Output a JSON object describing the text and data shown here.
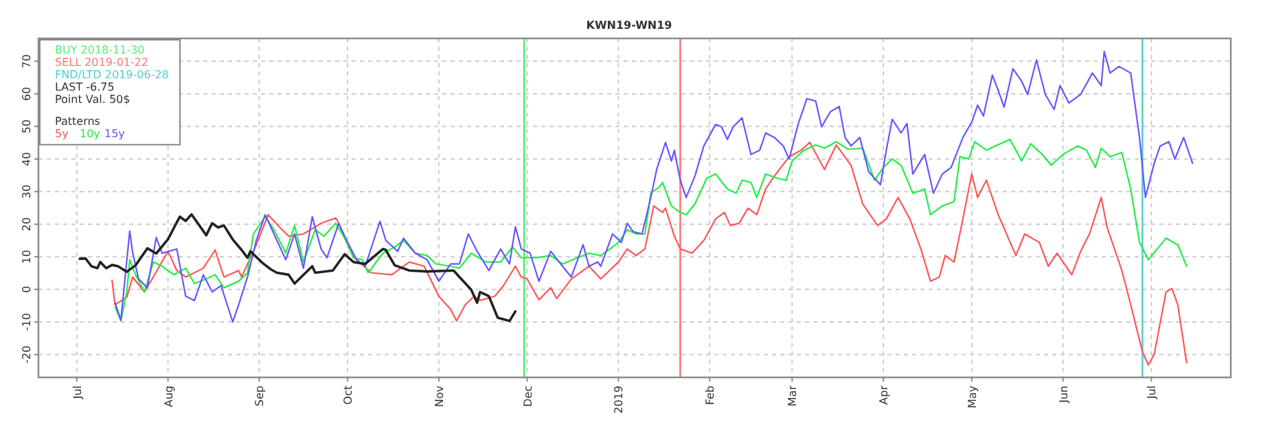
{
  "chart_data": {
    "type": "line",
    "title": "KWN19-WN19",
    "legend_title": "Patterns",
    "legend": "top left",
    "grid": true,
    "line_style": "solid",
    "xlim": [
      "2018-06-18",
      "2019-07-28"
    ],
    "xticks": [
      {
        "value": "2018-07-01",
        "label": "Jul"
      },
      {
        "value": "2018-08-01",
        "label": "Aug"
      },
      {
        "value": "2018-09-01",
        "label": "Sep"
      },
      {
        "value": "2018-10-01",
        "label": "Oct"
      },
      {
        "value": "2018-11-01",
        "label": "Nov"
      },
      {
        "value": "2018-12-01",
        "label": "Dec"
      },
      {
        "value": "2019-01-01",
        "label": "2019"
      },
      {
        "value": "2019-02-01",
        "label": "Feb"
      },
      {
        "value": "2019-03-01",
        "label": "Mar"
      },
      {
        "value": "2019-04-01",
        "label": "Apr"
      },
      {
        "value": "2019-05-01",
        "label": "May"
      },
      {
        "value": "2019-06-01",
        "label": "Jun"
      },
      {
        "value": "2019-07-01",
        "label": "Jul"
      }
    ],
    "ylim": [
      -27,
      77
    ],
    "yticks": [
      -20,
      -10,
      0,
      10,
      20,
      30,
      40,
      50,
      60,
      70
    ],
    "ref_lines": [
      {
        "axis": "x",
        "value": "2018-11-30",
        "label": "BUY 2018-11-30",
        "color": "#55ee77"
      },
      {
        "axis": "x",
        "value": "2019-01-22",
        "label": "SELL 2019-01-22",
        "color": "#ff7777"
      },
      {
        "axis": "x",
        "value": "2019-06-28",
        "label": "FND/LTD 2019-06-28",
        "color": "#55cccc"
      }
    ],
    "annotations": [
      "LAST -6.75",
      "Point Val. 50$"
    ],
    "series": [
      {
        "name": "5y",
        "color": "#ff5555",
        "x": [
          "2018-07-13",
          "2018-07-14",
          "2018-07-18",
          "2018-07-20",
          "2018-07-24",
          "2018-07-27",
          "2018-08-01",
          "2018-08-04",
          "2018-08-07",
          "2018-08-13",
          "2018-08-17",
          "2018-08-20",
          "2018-08-25",
          "2018-08-26",
          "2018-08-31",
          "2018-09-04",
          "2018-09-08",
          "2018-09-11",
          "2018-09-16",
          "2018-09-22",
          "2018-09-27",
          "2018-09-28",
          "2018-10-02",
          "2018-10-05",
          "2018-10-09",
          "2018-10-16",
          "2018-10-22",
          "2018-10-27",
          "2018-11-01",
          "2018-11-05",
          "2018-11-07",
          "2018-11-10",
          "2018-11-13",
          "2018-11-15",
          "2018-11-20",
          "2018-11-23",
          "2018-11-27",
          "2018-11-29",
          "2018-12-01",
          "2018-12-05",
          "2018-12-09",
          "2018-12-11",
          "2018-12-16",
          "2018-12-22",
          "2018-12-26",
          "2019-01-01",
          "2019-01-04",
          "2019-01-07",
          "2019-01-10",
          "2019-01-13",
          "2019-01-16",
          "2019-01-17",
          "2019-01-20",
          "2019-01-22",
          "2019-01-26",
          "2019-01-30",
          "2019-02-03",
          "2019-02-06",
          "2019-02-08",
          "2019-02-11",
          "2019-02-14",
          "2019-02-17",
          "2019-02-20",
          "2019-02-23",
          "2019-02-28",
          "2019-03-04",
          "2019-03-07",
          "2019-03-12",
          "2019-03-16",
          "2019-03-21",
          "2019-03-25",
          "2019-03-30",
          "2019-04-02",
          "2019-04-06",
          "2019-04-10",
          "2019-04-14",
          "2019-04-17",
          "2019-04-20",
          "2019-04-22",
          "2019-04-25",
          "2019-04-28",
          "2019-05-01",
          "2019-05-03",
          "2019-05-06",
          "2019-05-10",
          "2019-05-16",
          "2019-05-19",
          "2019-05-24",
          "2019-05-27",
          "2019-05-30",
          "2019-06-04",
          "2019-06-07",
          "2019-06-10",
          "2019-06-14",
          "2019-06-16",
          "2019-06-21",
          "2019-06-24",
          "2019-06-28",
          "2019-06-30",
          "2019-07-02",
          "2019-07-06",
          "2019-07-08",
          "2019-07-10",
          "2019-07-13"
        ],
        "values": [
          2.8,
          -4.7,
          -2.4,
          3.8,
          -0.8,
          3.8,
          11.7,
          5.8,
          3.8,
          6.5,
          12.1,
          3.8,
          5.8,
          3.8,
          13.7,
          22.9,
          19,
          16.3,
          17,
          20.3,
          21.9,
          20.3,
          11.7,
          8.4,
          5.1,
          4.5,
          8.4,
          7.1,
          -2.1,
          -6.1,
          -9.7,
          -4.7,
          -2.1,
          -3.4,
          -2.1,
          1.2,
          7.1,
          3.8,
          3.2,
          -3.2,
          0.5,
          -2.8,
          3.2,
          7.1,
          3.2,
          8.4,
          12.4,
          10.4,
          12.4,
          25.6,
          23.6,
          24.9,
          16.3,
          12.4,
          11.1,
          15,
          21.6,
          23.6,
          19.6,
          20.3,
          24.9,
          22.9,
          30.8,
          34.8,
          40.7,
          42.7,
          45.1,
          36.8,
          44.3,
          38.1,
          26.2,
          19.6,
          21.6,
          28.2,
          21.6,
          11.7,
          2.5,
          3.8,
          10.4,
          8.4,
          21.6,
          35.4,
          28.2,
          33.5,
          22.9,
          10.4,
          17,
          14.4,
          7.1,
          11.1,
          4.5,
          11.7,
          17,
          28.2,
          19,
          5.8,
          -4.7,
          -19.2,
          -23.2,
          -19.9,
          -0.8,
          0.3,
          -4.7,
          -22.5
        ]
      },
      {
        "name": "10y",
        "color": "#22ee44",
        "x": [
          "2018-07-14",
          "2018-07-16",
          "2018-07-18",
          "2018-07-19",
          "2018-07-21",
          "2018-07-24",
          "2018-07-27",
          "2018-07-30",
          "2018-08-03",
          "2018-08-07",
          "2018-08-10",
          "2018-08-14",
          "2018-08-17",
          "2018-08-20",
          "2018-08-25",
          "2018-08-28",
          "2018-08-30",
          "2018-09-03",
          "2018-09-06",
          "2018-09-10",
          "2018-09-13",
          "2018-09-16",
          "2018-09-20",
          "2018-09-23",
          "2018-09-27",
          "2018-09-30",
          "2018-10-03",
          "2018-10-06",
          "2018-10-08",
          "2018-10-13",
          "2018-10-17",
          "2018-10-20",
          "2018-10-24",
          "2018-10-28",
          "2018-10-31",
          "2018-11-05",
          "2018-11-08",
          "2018-11-12",
          "2018-11-17",
          "2018-11-22",
          "2018-11-26",
          "2018-11-29",
          "2018-12-04",
          "2018-12-09",
          "2018-12-13",
          "2018-12-18",
          "2018-12-22",
          "2018-12-26",
          "2018-12-30",
          "2019-01-01",
          "2019-01-04",
          "2019-01-07",
          "2019-01-10",
          "2019-01-12",
          "2019-01-15",
          "2019-01-16",
          "2019-01-19",
          "2019-01-22",
          "2019-01-24",
          "2019-01-27",
          "2019-01-31",
          "2019-02-03",
          "2019-02-07",
          "2019-02-10",
          "2019-02-12",
          "2019-02-15",
          "2019-02-17",
          "2019-02-20",
          "2019-02-24",
          "2019-02-27",
          "2019-03-01",
          "2019-03-05",
          "2019-03-09",
          "2019-03-12",
          "2019-03-16",
          "2019-03-20",
          "2019-03-25",
          "2019-03-29",
          "2019-04-01",
          "2019-04-04",
          "2019-04-07",
          "2019-04-11",
          "2019-04-15",
          "2019-04-17",
          "2019-04-21",
          "2019-04-25",
          "2019-04-27",
          "2019-04-30",
          "2019-05-02",
          "2019-05-06",
          "2019-05-09",
          "2019-05-14",
          "2019-05-18",
          "2019-05-21",
          "2019-05-25",
          "2019-05-28",
          "2019-06-01",
          "2019-06-06",
          "2019-06-09",
          "2019-06-12",
          "2019-06-14",
          "2019-06-17",
          "2019-06-21",
          "2019-06-24",
          "2019-06-27",
          "2019-06-30",
          "2019-07-03",
          "2019-07-06",
          "2019-07-10",
          "2019-07-13"
        ],
        "values": [
          -5.4,
          -9.7,
          -0.8,
          9.1,
          4.5,
          -0.8,
          8.4,
          7.1,
          4.5,
          6.5,
          1.8,
          3.2,
          4.5,
          0.5,
          2.5,
          5.1,
          17,
          22.3,
          18.3,
          11.1,
          19.6,
          8.4,
          18.3,
          16.3,
          20.3,
          15.7,
          9.7,
          9.1,
          5.1,
          11.1,
          13,
          15,
          11.1,
          10.4,
          7.8,
          7.1,
          6.5,
          11.1,
          8.4,
          8.4,
          13,
          9.7,
          9.7,
          10.4,
          7.8,
          9.7,
          11.1,
          10.4,
          13,
          14.4,
          18.3,
          17,
          17,
          29.5,
          31.5,
          32.8,
          25.6,
          23.6,
          22.9,
          26.2,
          34.1,
          35.4,
          30.8,
          29.5,
          33.5,
          32.8,
          28.2,
          35.4,
          34.1,
          33.5,
          39.4,
          42.7,
          44.3,
          43.3,
          45.3,
          43,
          43.3,
          33.5,
          37.4,
          40,
          38.1,
          29.5,
          30.8,
          22.9,
          25.6,
          26.9,
          40.7,
          40,
          45.3,
          42.7,
          44,
          46,
          39.4,
          44.7,
          41.4,
          38.1,
          41.4,
          44,
          42.7,
          37.4,
          43.3,
          40.7,
          42,
          30.8,
          14.4,
          9.1,
          12.4,
          15.7,
          13.7,
          7.1
        ]
      },
      {
        "name": "15y",
        "color": "#6655ff",
        "x": [
          "2018-07-14",
          "2018-07-16",
          "2018-07-19",
          "2018-07-20",
          "2018-07-22",
          "2018-07-25",
          "2018-07-28",
          "2018-07-30",
          "2018-08-04",
          "2018-08-07",
          "2018-08-10",
          "2018-08-13",
          "2018-08-16",
          "2018-08-19",
          "2018-08-23",
          "2018-08-25",
          "2018-08-28",
          "2018-08-31",
          "2018-09-03",
          "2018-09-06",
          "2018-09-10",
          "2018-09-13",
          "2018-09-16",
          "2018-09-19",
          "2018-09-22",
          "2018-09-24",
          "2018-09-28",
          "2018-09-30",
          "2018-10-04",
          "2018-10-07",
          "2018-10-12",
          "2018-10-14",
          "2018-10-18",
          "2018-10-20",
          "2018-10-24",
          "2018-10-28",
          "2018-11-01",
          "2018-11-05",
          "2018-11-08",
          "2018-11-11",
          "2018-11-14",
          "2018-11-18",
          "2018-11-22",
          "2018-11-25",
          "2018-11-27",
          "2018-11-29",
          "2018-12-02",
          "2018-12-05",
          "2018-12-09",
          "2018-12-13",
          "2018-12-16",
          "2018-12-20",
          "2018-12-22",
          "2018-12-25",
          "2018-12-26",
          "2018-12-30",
          "2019-01-02",
          "2019-01-04",
          "2019-01-06",
          "2019-01-09",
          "2019-01-12",
          "2019-01-14",
          "2019-01-17",
          "2019-01-19",
          "2019-01-20",
          "2019-01-22",
          "2019-01-24",
          "2019-01-27",
          "2019-01-30",
          "2019-02-03",
          "2019-02-05",
          "2019-02-07",
          "2019-02-09",
          "2019-02-12",
          "2019-02-15",
          "2019-02-18",
          "2019-02-20",
          "2019-02-23",
          "2019-02-26",
          "2019-02-28",
          "2019-03-03",
          "2019-03-06",
          "2019-03-09",
          "2019-03-11",
          "2019-03-14",
          "2019-03-17",
          "2019-03-19",
          "2019-03-21",
          "2019-03-24",
          "2019-03-27",
          "2019-03-31",
          "2019-04-02",
          "2019-04-04",
          "2019-04-07",
          "2019-04-09",
          "2019-04-11",
          "2019-04-15",
          "2019-04-18",
          "2019-04-21",
          "2019-04-24",
          "2019-04-28",
          "2019-05-01",
          "2019-05-03",
          "2019-05-05",
          "2019-05-08",
          "2019-05-10",
          "2019-05-12",
          "2019-05-15",
          "2019-05-18",
          "2019-05-20",
          "2019-05-23",
          "2019-05-26",
          "2019-05-29",
          "2019-05-31",
          "2019-06-03",
          "2019-06-07",
          "2019-06-11",
          "2019-06-14",
          "2019-06-15",
          "2019-06-17",
          "2019-06-20",
          "2019-06-24",
          "2019-06-27",
          "2019-06-29",
          "2019-07-02",
          "2019-07-04",
          "2019-07-07",
          "2019-07-09",
          "2019-07-12",
          "2019-07-15"
        ],
        "values": [
          -4.1,
          -9.4,
          17.9,
          11.3,
          3.2,
          0.5,
          15.9,
          11.1,
          12.4,
          -2.1,
          -3.4,
          4.5,
          -0.8,
          1.2,
          -10,
          -4.7,
          3.8,
          15,
          22.9,
          17,
          9.1,
          17,
          6.5,
          22.3,
          12.4,
          9.7,
          20.3,
          16.3,
          9.1,
          7.1,
          20.9,
          15,
          11.7,
          15.7,
          11.1,
          9.1,
          2.5,
          7.8,
          7.8,
          17,
          11.7,
          5.8,
          12.4,
          7.8,
          19.2,
          12.4,
          11.1,
          2.5,
          11.7,
          7.1,
          3.8,
          13.7,
          7.1,
          8.4,
          7.1,
          17,
          14.4,
          20.3,
          17.7,
          17,
          28.2,
          36.8,
          45.1,
          39.4,
          42.7,
          33.5,
          28.2,
          34.8,
          44,
          50.6,
          49.9,
          46,
          49.9,
          52.6,
          41.4,
          42.7,
          48,
          46.6,
          44,
          40,
          50.6,
          58.5,
          57.8,
          49.9,
          54.5,
          56.1,
          46.6,
          44,
          46.6,
          36.1,
          32.1,
          42.7,
          52.2,
          48,
          50.9,
          35.4,
          41.4,
          29.5,
          35.4,
          37.4,
          46.6,
          51.3,
          56.5,
          53.2,
          65.7,
          61.1,
          55.9,
          67.7,
          63.8,
          59.8,
          70.4,
          59.8,
          55.2,
          62.5,
          57.2,
          59.8,
          66.4,
          62.5,
          73,
          66.4,
          68.4,
          66.4,
          46.6,
          28.2,
          38.7,
          44,
          45.3,
          40,
          46.6,
          38.7
        ]
      },
      {
        "color": "#222222",
        "x": [
          "2018-07-02",
          "2018-07-04",
          "2018-07-06",
          "2018-07-08",
          "2018-07-09",
          "2018-07-11",
          "2018-07-13",
          "2018-07-15",
          "2018-07-18",
          "2018-07-21",
          "2018-07-25",
          "2018-07-28",
          "2018-08-01",
          "2018-08-05",
          "2018-08-07",
          "2018-08-09",
          "2018-08-14",
          "2018-08-16",
          "2018-08-18",
          "2018-08-20",
          "2018-08-23",
          "2018-08-26",
          "2018-08-28",
          "2018-08-29",
          "2018-09-02",
          "2018-09-05",
          "2018-09-07",
          "2018-09-11",
          "2018-09-13",
          "2018-09-19",
          "2018-09-20",
          "2018-09-26",
          "2018-09-30",
          "2018-10-03",
          "2018-10-07",
          "2018-10-13",
          "2018-10-14",
          "2018-10-17",
          "2018-10-22",
          "2018-10-28",
          "2018-11-06",
          "2018-11-08",
          "2018-11-12",
          "2018-11-14",
          "2018-11-15",
          "2018-11-18",
          "2018-11-21",
          "2018-11-25",
          "2018-11-27"
        ],
        "values": [
          9.4,
          9.5,
          7.1,
          6.5,
          8.4,
          6.5,
          7.5,
          7.1,
          5.4,
          7.4,
          12.6,
          11,
          15.4,
          22.3,
          21,
          23,
          16.6,
          20.3,
          19,
          19.6,
          15.3,
          12.1,
          9.7,
          11.7,
          8.2,
          6.1,
          5.1,
          4.5,
          1.8,
          7.1,
          5.1,
          5.8,
          10.8,
          8.4,
          7.8,
          12.4,
          12.1,
          7.4,
          5.8,
          5.5,
          5.8,
          3.8,
          -0.1,
          -4.1,
          -0.8,
          -2.1,
          -8.7,
          -9.7,
          -6.75
        ]
      }
    ]
  }
}
